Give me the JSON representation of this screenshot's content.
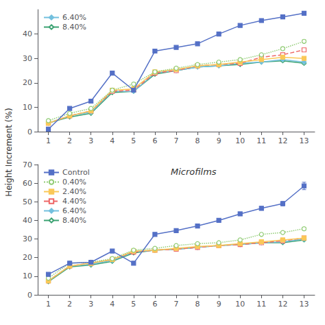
{
  "chart_data": [
    {
      "type": "line",
      "ylabel": "Height Increment (%)",
      "x": [
        1,
        2,
        3,
        4,
        5,
        6,
        7,
        8,
        9,
        10,
        11,
        12,
        13
      ],
      "xlim": [
        0.5,
        13.5
      ],
      "xticks": [
        1,
        2,
        3,
        4,
        5,
        6,
        7,
        8,
        9,
        10,
        11,
        12,
        13
      ],
      "ylim": [
        0,
        50
      ],
      "yticks": [
        0,
        10,
        20,
        30,
        40
      ],
      "grid": false,
      "legend": "upper left",
      "legend_entries": [
        "6.40%",
        "8.40%"
      ],
      "series": [
        {
          "name": "Control",
          "marker": "square",
          "line_style": "solid",
          "values": [
            1.0,
            9.5,
            12.5,
            24.0,
            17.0,
            33.0,
            34.5,
            36.0,
            40.0,
            43.5,
            45.5,
            47.0,
            48.5
          ],
          "errors": [
            0.0,
            0.0,
            0.0,
            0.0,
            0.0,
            0.0,
            0.0,
            0.0,
            0.0,
            0.0,
            0.0,
            0.0,
            0.0
          ]
        },
        {
          "name": "0.40%",
          "marker": "circle-open",
          "line_style": "dotted",
          "values": [
            4.5,
            7.5,
            9.5,
            17.0,
            19.5,
            24.5,
            26.0,
            27.5,
            28.5,
            29.5,
            31.5,
            34.0,
            37.0
          ],
          "errors": [
            0.0,
            0.0,
            0.0,
            0.0,
            0.0,
            0.0,
            0.0,
            0.0,
            0.0,
            0.0,
            0.0,
            0.6,
            0.6
          ]
        },
        {
          "name": "2.40%",
          "marker": "square",
          "line_style": "solid",
          "values": [
            3.5,
            6.5,
            8.5,
            17.0,
            17.5,
            24.5,
            25.5,
            27.0,
            27.5,
            28.5,
            29.5,
            30.5,
            30.0
          ],
          "errors": [
            0.0,
            0.0,
            0.0,
            0.0,
            0.0,
            0.0,
            0.0,
            0.0,
            0.0,
            0.0,
            0.0,
            0.3,
            0.3
          ]
        },
        {
          "name": "4.40%",
          "marker": "square-open",
          "line_style": "dashed",
          "values": [
            3.5,
            6.5,
            8.5,
            16.5,
            17.0,
            24.0,
            25.0,
            27.0,
            27.5,
            28.0,
            30.5,
            31.5,
            33.5
          ],
          "errors": [
            0.0,
            0.0,
            0.0,
            0.0,
            0.0,
            0.0,
            0.0,
            0.0,
            0.0,
            0.0,
            0.0,
            0.4,
            0.5
          ]
        },
        {
          "name": "6.40%",
          "marker": "diamond",
          "line_style": "solid",
          "values": [
            3.5,
            6.5,
            8.0,
            16.5,
            16.5,
            24.0,
            25.0,
            26.5,
            27.0,
            28.0,
            28.5,
            29.5,
            28.5
          ],
          "errors": [
            0.0,
            0.0,
            0.0,
            0.0,
            0.0,
            0.0,
            0.0,
            0.0,
            0.0,
            0.0,
            0.0,
            0.3,
            0.3
          ]
        },
        {
          "name": "8.40%",
          "marker": "diamond-open",
          "line_style": "solid",
          "values": [
            3.5,
            6.0,
            7.5,
            16.0,
            16.5,
            23.5,
            25.0,
            26.5,
            27.0,
            27.5,
            28.5,
            29.0,
            28.0
          ],
          "errors": [
            0.0,
            0.0,
            0.0,
            0.0,
            0.0,
            0.0,
            0.0,
            0.0,
            0.0,
            0.0,
            0.0,
            0.3,
            0.4
          ]
        }
      ]
    },
    {
      "type": "line",
      "annotation": "Microfilms",
      "x": [
        1,
        2,
        3,
        4,
        5,
        6,
        7,
        8,
        9,
        10,
        11,
        12,
        13
      ],
      "xlim": [
        0.5,
        13.5
      ],
      "xticks": [
        1,
        2,
        3,
        4,
        5,
        6,
        7,
        8,
        9,
        10,
        11,
        12,
        13
      ],
      "ylim": [
        0,
        70
      ],
      "yticks": [
        0,
        10,
        20,
        30,
        40,
        50,
        60,
        70
      ],
      "grid": false,
      "legend": "upper left",
      "series": [
        {
          "name": "Control",
          "marker": "square",
          "line_style": "solid",
          "values": [
            11.0,
            17.0,
            17.5,
            23.5,
            17.0,
            32.5,
            34.5,
            37.0,
            40.0,
            43.5,
            46.5,
            49.0,
            58.5
          ],
          "errors": [
            0.0,
            0.0,
            0.0,
            0.0,
            0.0,
            0.0,
            0.0,
            0.6,
            0.7,
            0.8,
            1.0,
            1.2,
            2.0
          ]
        },
        {
          "name": "0.40%",
          "marker": "circle-open",
          "line_style": "dotted",
          "values": [
            9.0,
            17.0,
            17.5,
            19.5,
            24.0,
            25.0,
            26.5,
            27.5,
            28.0,
            29.5,
            32.5,
            33.5,
            35.5
          ],
          "errors": [
            0.0,
            0.0,
            0.0,
            0.0,
            0.0,
            0.0,
            0.0,
            0.0,
            0.0,
            0.0,
            0.0,
            0.6,
            0.8
          ]
        },
        {
          "name": "2.40%",
          "marker": "square",
          "line_style": "solid",
          "values": [
            7.5,
            15.5,
            17.0,
            19.0,
            23.5,
            24.0,
            25.0,
            26.0,
            26.5,
            27.5,
            28.5,
            29.5,
            30.5
          ],
          "errors": [
            0.0,
            0.0,
            0.0,
            0.0,
            0.0,
            0.0,
            0.0,
            0.0,
            0.0,
            0.0,
            0.0,
            0.3,
            0.3
          ]
        },
        {
          "name": "4.40%",
          "marker": "square-open",
          "line_style": "dashed",
          "values": [
            7.5,
            15.5,
            17.0,
            19.0,
            23.0,
            24.0,
            24.5,
            25.5,
            26.5,
            27.0,
            28.0,
            29.0,
            30.5
          ],
          "errors": [
            0.0,
            0.0,
            0.0,
            0.0,
            0.0,
            0.0,
            0.0,
            0.0,
            0.0,
            0.0,
            0.0,
            0.3,
            0.3
          ]
        },
        {
          "name": "6.40%",
          "marker": "diamond",
          "line_style": "solid",
          "values": [
            7.5,
            15.5,
            16.5,
            18.5,
            23.0,
            24.0,
            24.5,
            25.5,
            26.5,
            27.0,
            28.0,
            28.5,
            30.0
          ],
          "errors": [
            0.0,
            0.0,
            0.0,
            0.0,
            0.0,
            0.0,
            0.0,
            0.0,
            0.0,
            0.0,
            0.0,
            0.3,
            0.3
          ]
        },
        {
          "name": "8.40%",
          "marker": "diamond-open",
          "line_style": "solid",
          "values": [
            7.0,
            15.0,
            16.0,
            18.0,
            22.5,
            24.0,
            24.5,
            25.5,
            26.5,
            27.0,
            28.0,
            28.0,
            29.5
          ],
          "errors": [
            0.0,
            0.0,
            0.0,
            0.0,
            0.0,
            0.0,
            0.0,
            0.0,
            0.0,
            0.0,
            0.0,
            0.3,
            0.3
          ]
        }
      ]
    }
  ]
}
